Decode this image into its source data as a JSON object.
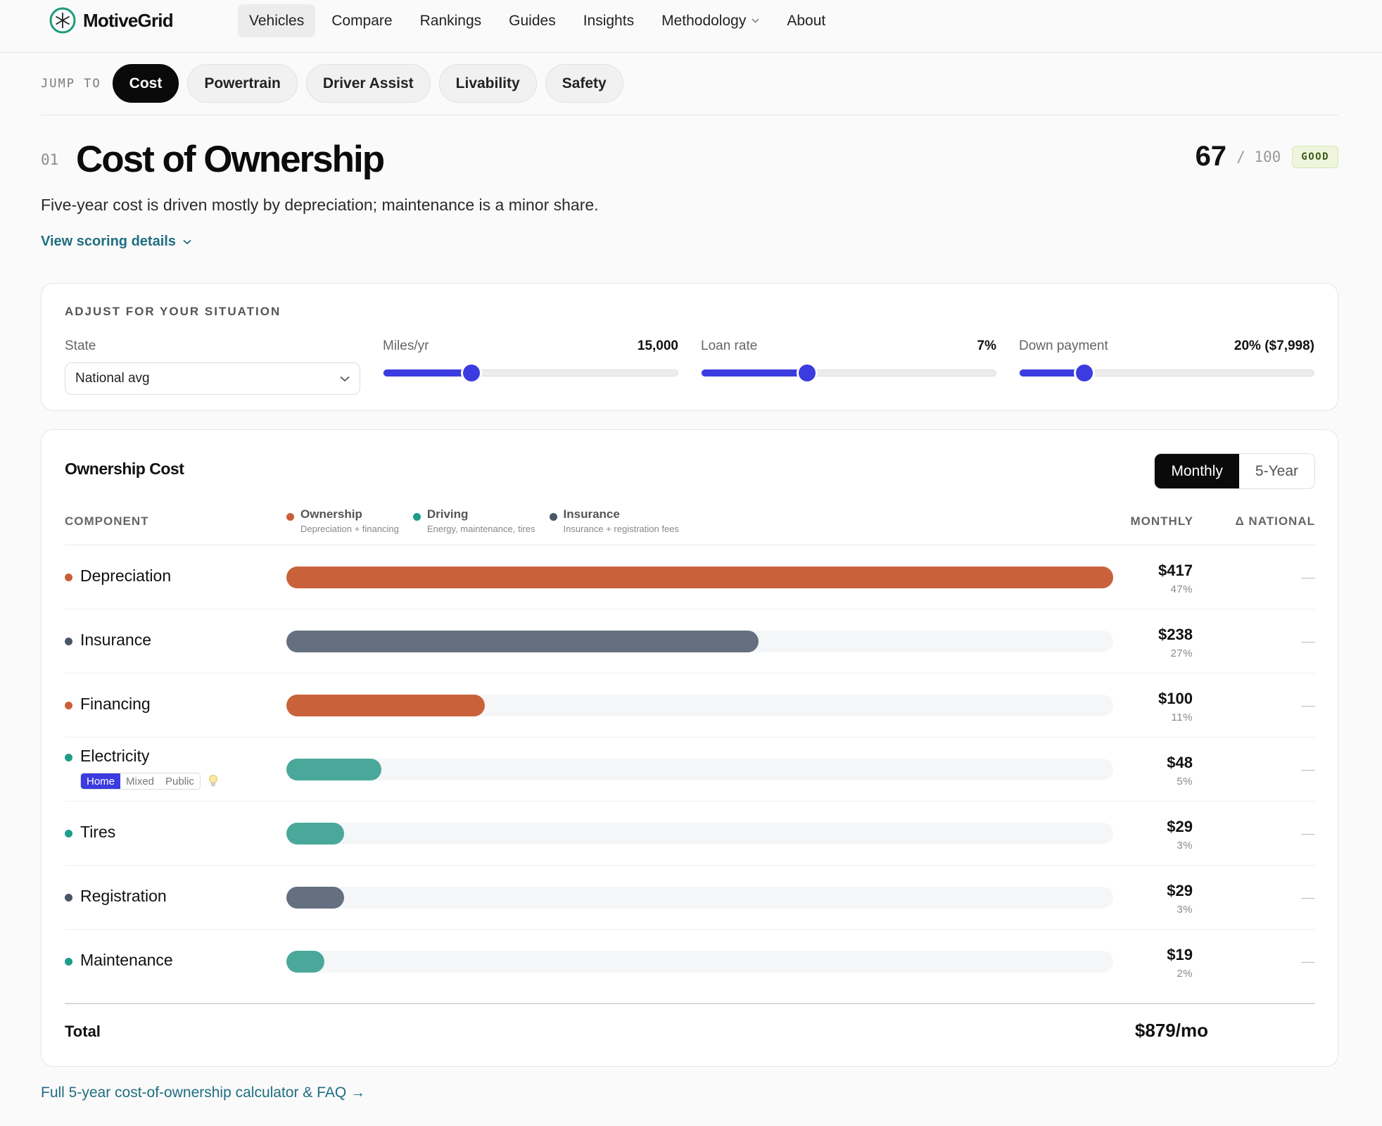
{
  "brand": {
    "name": "MotiveGrid",
    "accent": "#1f9b7a"
  },
  "nav": {
    "items": [
      {
        "label": "Vehicles",
        "active": true
      },
      {
        "label": "Compare"
      },
      {
        "label": "Rankings"
      },
      {
        "label": "Guides"
      },
      {
        "label": "Insights"
      },
      {
        "label": "Methodology",
        "dropdown": true
      },
      {
        "label": "About"
      }
    ]
  },
  "jump": {
    "label": "JUMP TO",
    "items": [
      "Cost",
      "Powertrain",
      "Driver Assist",
      "Livability",
      "Safety"
    ],
    "active": "Cost"
  },
  "section": {
    "number": "01",
    "title": "Cost of Ownership",
    "description": "Five-year cost is driven mostly by depreciation; maintenance is a minor share.",
    "details_link": "View scoring details",
    "score": "67",
    "score_max": "/ 100",
    "badge": "GOOD"
  },
  "adjust": {
    "title": "ADJUST FOR YOUR SITUATION",
    "state": {
      "label": "State",
      "value": "National avg"
    },
    "miles": {
      "label": "Miles/yr",
      "value": "15,000",
      "level": 0.3
    },
    "loan": {
      "label": "Loan rate",
      "value": "7%",
      "level": 0.36
    },
    "down": {
      "label": "Down payment",
      "value": "20% ($7,998)",
      "level": 0.22
    }
  },
  "ownership": {
    "title": "Ownership Cost",
    "toggle": [
      "Monthly",
      "5-Year"
    ],
    "toggle_active": "Monthly",
    "headers": {
      "component": "COMPONENT",
      "monthly": "MONTHLY",
      "national": "Δ NATIONAL"
    },
    "legend": [
      {
        "name": "Ownership",
        "sub": "Depreciation + financing",
        "color": "#c95f38"
      },
      {
        "name": "Driving",
        "sub": "Energy, maintenance, tires",
        "color": "#1f9b8a"
      },
      {
        "name": "Insurance",
        "sub": "Insurance + registration fees",
        "color": "#4a5568"
      }
    ],
    "rows": [
      {
        "name": "Depreciation",
        "amount": "$417",
        "pct": "47%",
        "value": 417,
        "dot": "#c95f38",
        "bar": "#c9623b"
      },
      {
        "name": "Insurance",
        "amount": "$238",
        "pct": "27%",
        "value": 238,
        "dot": "#4a5568",
        "bar": "#646f80"
      },
      {
        "name": "Financing",
        "amount": "$100",
        "pct": "11%",
        "value": 100,
        "dot": "#c95f38",
        "bar": "#c9623b"
      },
      {
        "name": "Electricity",
        "amount": "$48",
        "pct": "5%",
        "value": 48,
        "dot": "#1f9b8a",
        "bar": "#4aa89a",
        "modes": [
          "Home",
          "Mixed",
          "Public"
        ],
        "mode_active": "Home"
      },
      {
        "name": "Tires",
        "amount": "$29",
        "pct": "3%",
        "value": 29,
        "dot": "#1f9b8a",
        "bar": "#4aa89a"
      },
      {
        "name": "Registration",
        "amount": "$29",
        "pct": "3%",
        "value": 29,
        "dot": "#4a5568",
        "bar": "#646f80"
      },
      {
        "name": "Maintenance",
        "amount": "$19",
        "pct": "2%",
        "value": 19,
        "dot": "#1f9b8a",
        "bar": "#4aa89a"
      }
    ],
    "total_label": "Total",
    "total_value": "$879/mo"
  },
  "footer_link": "Full 5-year cost-of-ownership calculator & FAQ →"
}
